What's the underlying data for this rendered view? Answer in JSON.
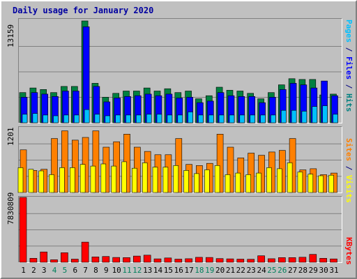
{
  "title": "Daily usage for January 2020",
  "colors": {
    "hits": "#008040",
    "files": "#0000ff",
    "pages": "#00c0ff",
    "visits": "#ff8000",
    "sites": "#ffff00",
    "kbytes": "#ff0000",
    "weekend_day": "#00805c",
    "weekday": "#000000",
    "background": "#c0c0c0",
    "title": "#0000a0"
  },
  "chart_data": [
    {
      "type": "bar",
      "panel": "top",
      "ymax_label": "13159",
      "ylim": [
        0,
        13159
      ],
      "grid": true,
      "categories": [
        "1",
        "2",
        "3",
        "4",
        "5",
        "6",
        "7",
        "8",
        "9",
        "10",
        "11",
        "12",
        "13",
        "14",
        "15",
        "16",
        "17",
        "18",
        "19",
        "20",
        "21",
        "22",
        "23",
        "24",
        "25",
        "26",
        "27",
        "28",
        "29",
        "30",
        "31"
      ],
      "series": [
        {
          "name": "Hits",
          "values": [
            3900,
            4500,
            4300,
            3900,
            4700,
            4700,
            13159,
            5100,
            3300,
            3800,
            4100,
            4100,
            4500,
            4100,
            4400,
            3900,
            4100,
            3100,
            3500,
            4600,
            4200,
            4100,
            3800,
            3100,
            3900,
            4900,
            5700,
            5600,
            5600,
            3600,
            3700
          ]
        },
        {
          "name": "Files",
          "values": [
            3300,
            3900,
            3700,
            3400,
            4100,
            4100,
            12400,
            4700,
            2700,
            3200,
            3400,
            3500,
            3700,
            3500,
            3700,
            3200,
            3300,
            2600,
            2800,
            3900,
            3500,
            3400,
            3400,
            2600,
            3300,
            4300,
            5100,
            4900,
            4500,
            5400,
            3500
          ]
        },
        {
          "name": "Pages",
          "values": [
            1100,
            1200,
            1000,
            900,
            1000,
            1000,
            1700,
            1100,
            900,
            1000,
            1000,
            1000,
            1100,
            1100,
            1000,
            1000,
            1400,
            1000,
            1000,
            1000,
            1000,
            1000,
            1000,
            1000,
            1000,
            1600,
            1600,
            1500,
            2100,
            2200,
            1100
          ]
        }
      ],
      "right_label": {
        "pages": "Pages",
        "files": "Files",
        "hits": "Hits",
        "sep": " / "
      }
    },
    {
      "type": "bar",
      "panel": "middle",
      "ymax_label": "1201",
      "ylim": [
        0,
        1201
      ],
      "grid": true,
      "categories": [
        "1",
        "2",
        "3",
        "4",
        "5",
        "6",
        "7",
        "8",
        "9",
        "10",
        "11",
        "12",
        "13",
        "14",
        "15",
        "16",
        "17",
        "18",
        "19",
        "20",
        "21",
        "22",
        "23",
        "24",
        "25",
        "26",
        "27",
        "28",
        "29",
        "30",
        "31"
      ],
      "series": [
        {
          "name": "Visits",
          "values": [
            790,
            410,
            430,
            1000,
            1141,
            970,
            1020,
            1141,
            840,
            940,
            1081,
            840,
            760,
            700,
            700,
            1000,
            520,
            500,
            540,
            1081,
            840,
            640,
            730,
            690,
            750,
            780,
            1000,
            420,
            440,
            330,
            360
          ]
        },
        {
          "name": "Sites",
          "values": [
            460,
            430,
            400,
            330,
            460,
            460,
            520,
            490,
            530,
            490,
            570,
            450,
            550,
            470,
            470,
            500,
            410,
            350,
            420,
            500,
            330,
            360,
            330,
            360,
            460,
            440,
            550,
            380,
            340,
            310,
            320
          ]
        }
      ],
      "right_label": {
        "sites": "Sites",
        "visits": "Visits",
        "sep": " / "
      }
    },
    {
      "type": "bar",
      "panel": "bottom",
      "ymax_label": "7830809",
      "ylim": [
        0,
        7830809
      ],
      "grid": true,
      "categories": [
        "1",
        "2",
        "3",
        "4",
        "5",
        "6",
        "7",
        "8",
        "9",
        "10",
        "11",
        "12",
        "13",
        "14",
        "15",
        "16",
        "17",
        "18",
        "19",
        "20",
        "21",
        "22",
        "23",
        "24",
        "25",
        "26",
        "27",
        "28",
        "29",
        "30",
        "31"
      ],
      "series": [
        {
          "name": "KBytes",
          "values": [
            7830809,
            480000,
            1250000,
            300000,
            1150000,
            380000,
            2430000,
            650000,
            700000,
            580000,
            560000,
            750000,
            860000,
            410000,
            520000,
            380000,
            430000,
            600000,
            580000,
            450000,
            410000,
            380000,
            360000,
            780000,
            430000,
            560000,
            560000,
            610000,
            950000,
            480000,
            400000
          ]
        }
      ],
      "right_label": {
        "kbytes": "KBytes"
      }
    }
  ]
}
